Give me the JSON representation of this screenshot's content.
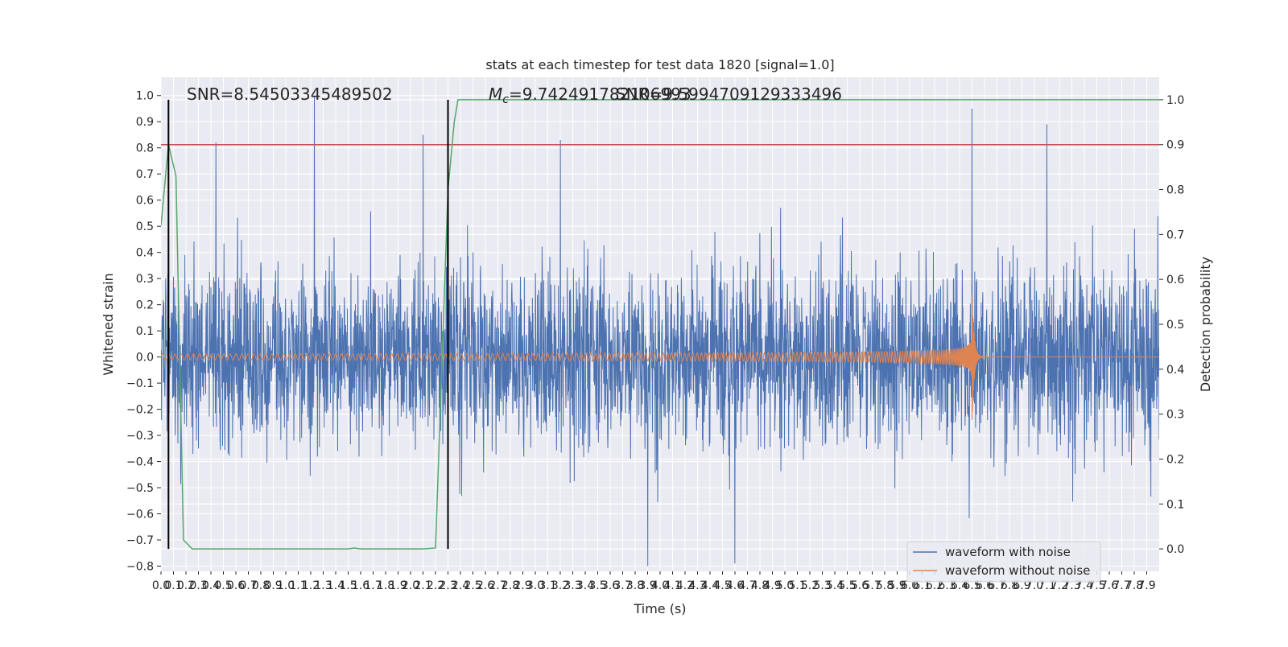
{
  "chart_data": {
    "type": "line",
    "title": "stats at each timestep for test data 1820 [signal=1.0]",
    "xlabel": "Time (s)",
    "ylabel": "Whitened strain",
    "ylabel_right": "Detection probability",
    "xlim": [
      0.0,
      8.0
    ],
    "ylim": [
      -0.82,
      1.07
    ],
    "ylim_right": [
      -0.05,
      1.05
    ],
    "x_ticks": [
      "0.0",
      "0.1",
      "0.2",
      "0.3",
      "0.4",
      "0.5",
      "0.6",
      "0.7",
      "0.8",
      "0.9",
      "1.0",
      "1.1",
      "1.2",
      "1.3",
      "1.4",
      "1.5",
      "1.6",
      "1.7",
      "1.8",
      "1.9",
      "2.0",
      "2.1",
      "2.2",
      "2.3",
      "2.4",
      "2.5",
      "2.6",
      "2.7",
      "2.8",
      "2.9",
      "3.0",
      "3.1",
      "3.2",
      "3.3",
      "3.4",
      "3.5",
      "3.6",
      "3.7",
      "3.8",
      "3.9",
      "4.0",
      "4.1",
      "4.2",
      "4.3",
      "4.4",
      "4.5",
      "4.6",
      "4.7",
      "4.8",
      "4.9",
      "5.0",
      "5.1",
      "5.2",
      "5.3",
      "5.4",
      "5.5",
      "5.6",
      "5.7",
      "5.8",
      "5.9",
      "6.0",
      "6.1",
      "6.2",
      "6.3",
      "6.4",
      "6.5",
      "6.6",
      "6.7",
      "6.8",
      "6.9",
      "7.0",
      "7.1",
      "7.2",
      "7.3",
      "7.4",
      "7.5",
      "7.6",
      "7.7",
      "7.8",
      "7.9"
    ],
    "y_ticks": [
      "1.0",
      "0.9",
      "0.8",
      "0.7",
      "0.6",
      "0.5",
      "0.4",
      "0.3",
      "0.2",
      "0.1",
      "0.0",
      "−0.1",
      "−0.2",
      "−0.3",
      "−0.4",
      "−0.5",
      "−0.6",
      "−0.7",
      "−0.8"
    ],
    "y_ticks_right": [
      "1.0",
      "0.9",
      "0.8",
      "0.7",
      "0.6",
      "0.5",
      "0.4",
      "0.3",
      "0.2",
      "0.1",
      "0.0"
    ],
    "annotations": {
      "snr": "SNR=8.54503345489502",
      "mc_symbol": "M",
      "mc_sub": "c",
      "mc_value": "=9.742491782106993",
      "overlap": "SNR=9.5994709129333496"
    },
    "legend": {
      "position": "lower-right",
      "entries": [
        "waveform with noise",
        "waveform without noise"
      ]
    },
    "threshold": {
      "value": 0.9,
      "axis": "right",
      "color": "#c44e52"
    },
    "vlines": [
      0.06,
      2.3
    ],
    "noise": {
      "name": "waveform with noise",
      "color": "#4c72b0",
      "envelope_typical": 0.4,
      "peaks": [
        [
          1.23,
          1.0
        ],
        [
          6.5,
          0.95
        ],
        [
          7.1,
          0.89
        ],
        [
          2.1,
          0.85
        ],
        [
          3.2,
          0.83
        ],
        [
          0.44,
          0.82
        ],
        [
          3.9,
          -0.8
        ],
        [
          4.6,
          -0.79
        ]
      ]
    },
    "chirp": {
      "name": "waveform without noise",
      "color": "#dd8452",
      "merger_time": 6.5,
      "amplitude_start": 0.012,
      "amplitude_peak": 0.24,
      "amplitude_trough": -0.27,
      "freq_start_hz": 20
    },
    "probability": {
      "name": "Detection probability",
      "color": "#55a868",
      "x": [
        0.0,
        0.06,
        0.12,
        0.18,
        0.25,
        0.4,
        0.6,
        0.8,
        1.0,
        1.2,
        1.4,
        1.5,
        1.55,
        1.6,
        1.7,
        1.8,
        2.0,
        2.1,
        2.2,
        2.25,
        2.3,
        2.35,
        2.38,
        8.0
      ],
      "y": [
        0.72,
        0.9,
        0.83,
        0.02,
        0.0,
        0.0,
        0.0,
        0.0,
        0.0,
        0.0,
        0.0,
        0.0,
        0.002,
        0.0,
        0.0,
        0.0,
        0.0,
        0.0,
        0.002,
        0.4,
        0.8,
        0.95,
        1.0,
        1.0
      ]
    }
  }
}
